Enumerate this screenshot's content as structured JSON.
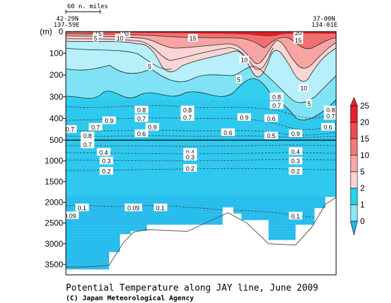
{
  "title": "Potential Temperature along JAY line, June 2009",
  "credit": "(C) Japan Meteorological Agency",
  "scale_bar_label": "60 n. miles",
  "endpoints": {
    "west_lat": "42-29N",
    "west_lon": "137-59E",
    "east_lat": "37-00N",
    "east_lon": "134-01E"
  },
  "chart_data": {
    "type": "heatmap",
    "title": "Potential Temperature along JAY line, June 2009",
    "ylabel": "(m)",
    "y_axis": {
      "upper_panel_ticks": [
        "100",
        "200",
        "300",
        "400",
        "500"
      ],
      "lower_panel_ticks": [
        "1000",
        "1500",
        "2000",
        "2500",
        "3000",
        "3500"
      ],
      "upper_range_m": [
        0,
        500
      ],
      "lower_range_m": [
        500,
        3750
      ],
      "direction": "depth increasing downward"
    },
    "colorbar": {
      "levels": [
        "25",
        "20",
        "15",
        "10",
        "5",
        "2",
        "1",
        "0"
      ],
      "colors": [
        "#e8202a",
        "#f04a4a",
        "#f47878",
        "#f8a8a8",
        "#fbd4d4",
        "#28d4ec",
        "#8ee6f4",
        "#28b4ec"
      ],
      "extend": "both"
    },
    "contour_labels": [
      {
        "value": "15",
        "x_frac": 0.12,
        "depth": 10
      },
      {
        "value": "5",
        "x_frac": 0.11,
        "depth": 30
      },
      {
        "value": "20",
        "x_frac": 0.22,
        "depth": 10
      },
      {
        "value": "10",
        "x_frac": 0.2,
        "depth": 30
      },
      {
        "value": "15",
        "x_frac": 0.47,
        "depth": 30
      },
      {
        "value": "5",
        "x_frac": 0.31,
        "depth": 160
      },
      {
        "value": "10",
        "x_frac": 0.66,
        "depth": 130
      },
      {
        "value": "5",
        "x_frac": 0.64,
        "depth": 220
      },
      {
        "value": "20",
        "x_frac": 0.86,
        "depth": 5
      },
      {
        "value": "15",
        "x_frac": 0.86,
        "depth": 40
      },
      {
        "value": "10",
        "x_frac": 0.88,
        "depth": 260
      },
      {
        "value": "5",
        "x_frac": 0.9,
        "depth": 330
      },
      {
        "value": "0.8",
        "x_frac": 0.78,
        "depth": 300
      },
      {
        "value": "0.7",
        "x_frac": 0.78,
        "depth": 340
      },
      {
        "value": "0.8",
        "x_frac": 0.98,
        "depth": 360
      },
      {
        "value": "0.7",
        "x_frac": 0.98,
        "depth": 390
      },
      {
        "value": "0.8",
        "x_frac": 0.28,
        "depth": 360
      },
      {
        "value": "0.7",
        "x_frac": 0.28,
        "depth": 400
      },
      {
        "value": "0.8",
        "x_frac": 0.45,
        "depth": 360
      },
      {
        "value": "0.7",
        "x_frac": 0.45,
        "depth": 395
      },
      {
        "value": "0.9",
        "x_frac": 0.16,
        "depth": 410
      },
      {
        "value": "0.9",
        "x_frac": 0.66,
        "depth": 395
      },
      {
        "value": "0.6",
        "x_frac": 0.76,
        "depth": 400
      },
      {
        "value": "0.6",
        "x_frac": 0.97,
        "depth": 440
      },
      {
        "value": "0.7",
        "x_frac": 0.11,
        "depth": 440
      },
      {
        "value": "0.9",
        "x_frac": 0.32,
        "depth": 440
      },
      {
        "value": "0.6",
        "x_frac": 0.28,
        "depth": 470
      },
      {
        "value": "0.6",
        "x_frac": 0.6,
        "depth": 465
      },
      {
        "value": "0.5",
        "x_frac": 0.76,
        "depth": 480
      },
      {
        "value": "0.9",
        "x_frac": 0.85,
        "depth": 470
      },
      {
        "value": "0.7",
        "x_frac": 0.0,
        "depth": 450
      },
      {
        "value": "0.8",
        "x_frac": 0.08,
        "depth": 480
      },
      {
        "value": "0.8",
        "x_frac": 0.08,
        "depth": 560
      },
      {
        "value": "0.7",
        "x_frac": 0.08,
        "depth": 610
      },
      {
        "value": "0.4",
        "x_frac": 0.14,
        "depth": 790
      },
      {
        "value": "0.3",
        "x_frac": 0.15,
        "depth": 1000
      },
      {
        "value": "0.2",
        "x_frac": 0.15,
        "depth": 1250
      },
      {
        "value": "0.4",
        "x_frac": 0.46,
        "depth": 790
      },
      {
        "value": "0.3",
        "x_frac": 0.46,
        "depth": 910
      },
      {
        "value": "0.2",
        "x_frac": 0.46,
        "depth": 1180
      },
      {
        "value": "0.4",
        "x_frac": 0.85,
        "depth": 770
      },
      {
        "value": "0.3",
        "x_frac": 0.85,
        "depth": 1000
      },
      {
        "value": "0.2",
        "x_frac": 0.85,
        "depth": 1250
      },
      {
        "value": "0.1",
        "x_frac": 0.06,
        "depth": 2130
      },
      {
        "value": "0.09",
        "x_frac": 0.0,
        "depth": 2320
      },
      {
        "value": "0.09",
        "x_frac": 0.25,
        "depth": 2130
      },
      {
        "value": "0.1",
        "x_frac": 0.35,
        "depth": 2130
      },
      {
        "value": "0.1",
        "x_frac": 0.85,
        "depth": 2330
      }
    ],
    "bottom_depth_profile": [
      {
        "x_frac": 0.0,
        "depth": 3560
      },
      {
        "x_frac": 0.07,
        "depth": 3560
      },
      {
        "x_frac": 0.16,
        "depth": 3520
      },
      {
        "x_frac": 0.21,
        "depth": 3000
      },
      {
        "x_frac": 0.25,
        "depth": 2720
      },
      {
        "x_frac": 0.3,
        "depth": 2660
      },
      {
        "x_frac": 0.45,
        "depth": 2700
      },
      {
        "x_frac": 0.6,
        "depth": 2250
      },
      {
        "x_frac": 0.67,
        "depth": 2500
      },
      {
        "x_frac": 0.75,
        "depth": 3000
      },
      {
        "x_frac": 0.85,
        "depth": 3030
      },
      {
        "x_frac": 0.91,
        "depth": 2600
      },
      {
        "x_frac": 0.96,
        "depth": 2050
      },
      {
        "x_frac": 1.0,
        "depth": 1880
      }
    ],
    "station_bottoms": [
      {
        "x0": 0.0,
        "x1": 0.16,
        "depth": 3620
      },
      {
        "x0": 0.16,
        "x1": 0.2,
        "depth": 3200
      },
      {
        "x0": 0.2,
        "x1": 0.24,
        "depth": 2770
      },
      {
        "x0": 0.24,
        "x1": 0.3,
        "depth": 2690
      },
      {
        "x0": 0.3,
        "x1": 0.58,
        "depth": 2540
      },
      {
        "x0": 0.58,
        "x1": 0.62,
        "depth": 2120
      },
      {
        "x0": 0.62,
        "x1": 0.65,
        "depth": 2270
      },
      {
        "x0": 0.65,
        "x1": 0.75,
        "depth": 2430
      },
      {
        "x0": 0.75,
        "x1": 0.85,
        "depth": 2910
      },
      {
        "x0": 0.85,
        "x1": 0.92,
        "depth": 2540
      },
      {
        "x0": 0.92,
        "x1": 0.96,
        "depth": 2140
      },
      {
        "x0": 0.96,
        "x1": 1.0,
        "depth": 1870
      }
    ]
  }
}
